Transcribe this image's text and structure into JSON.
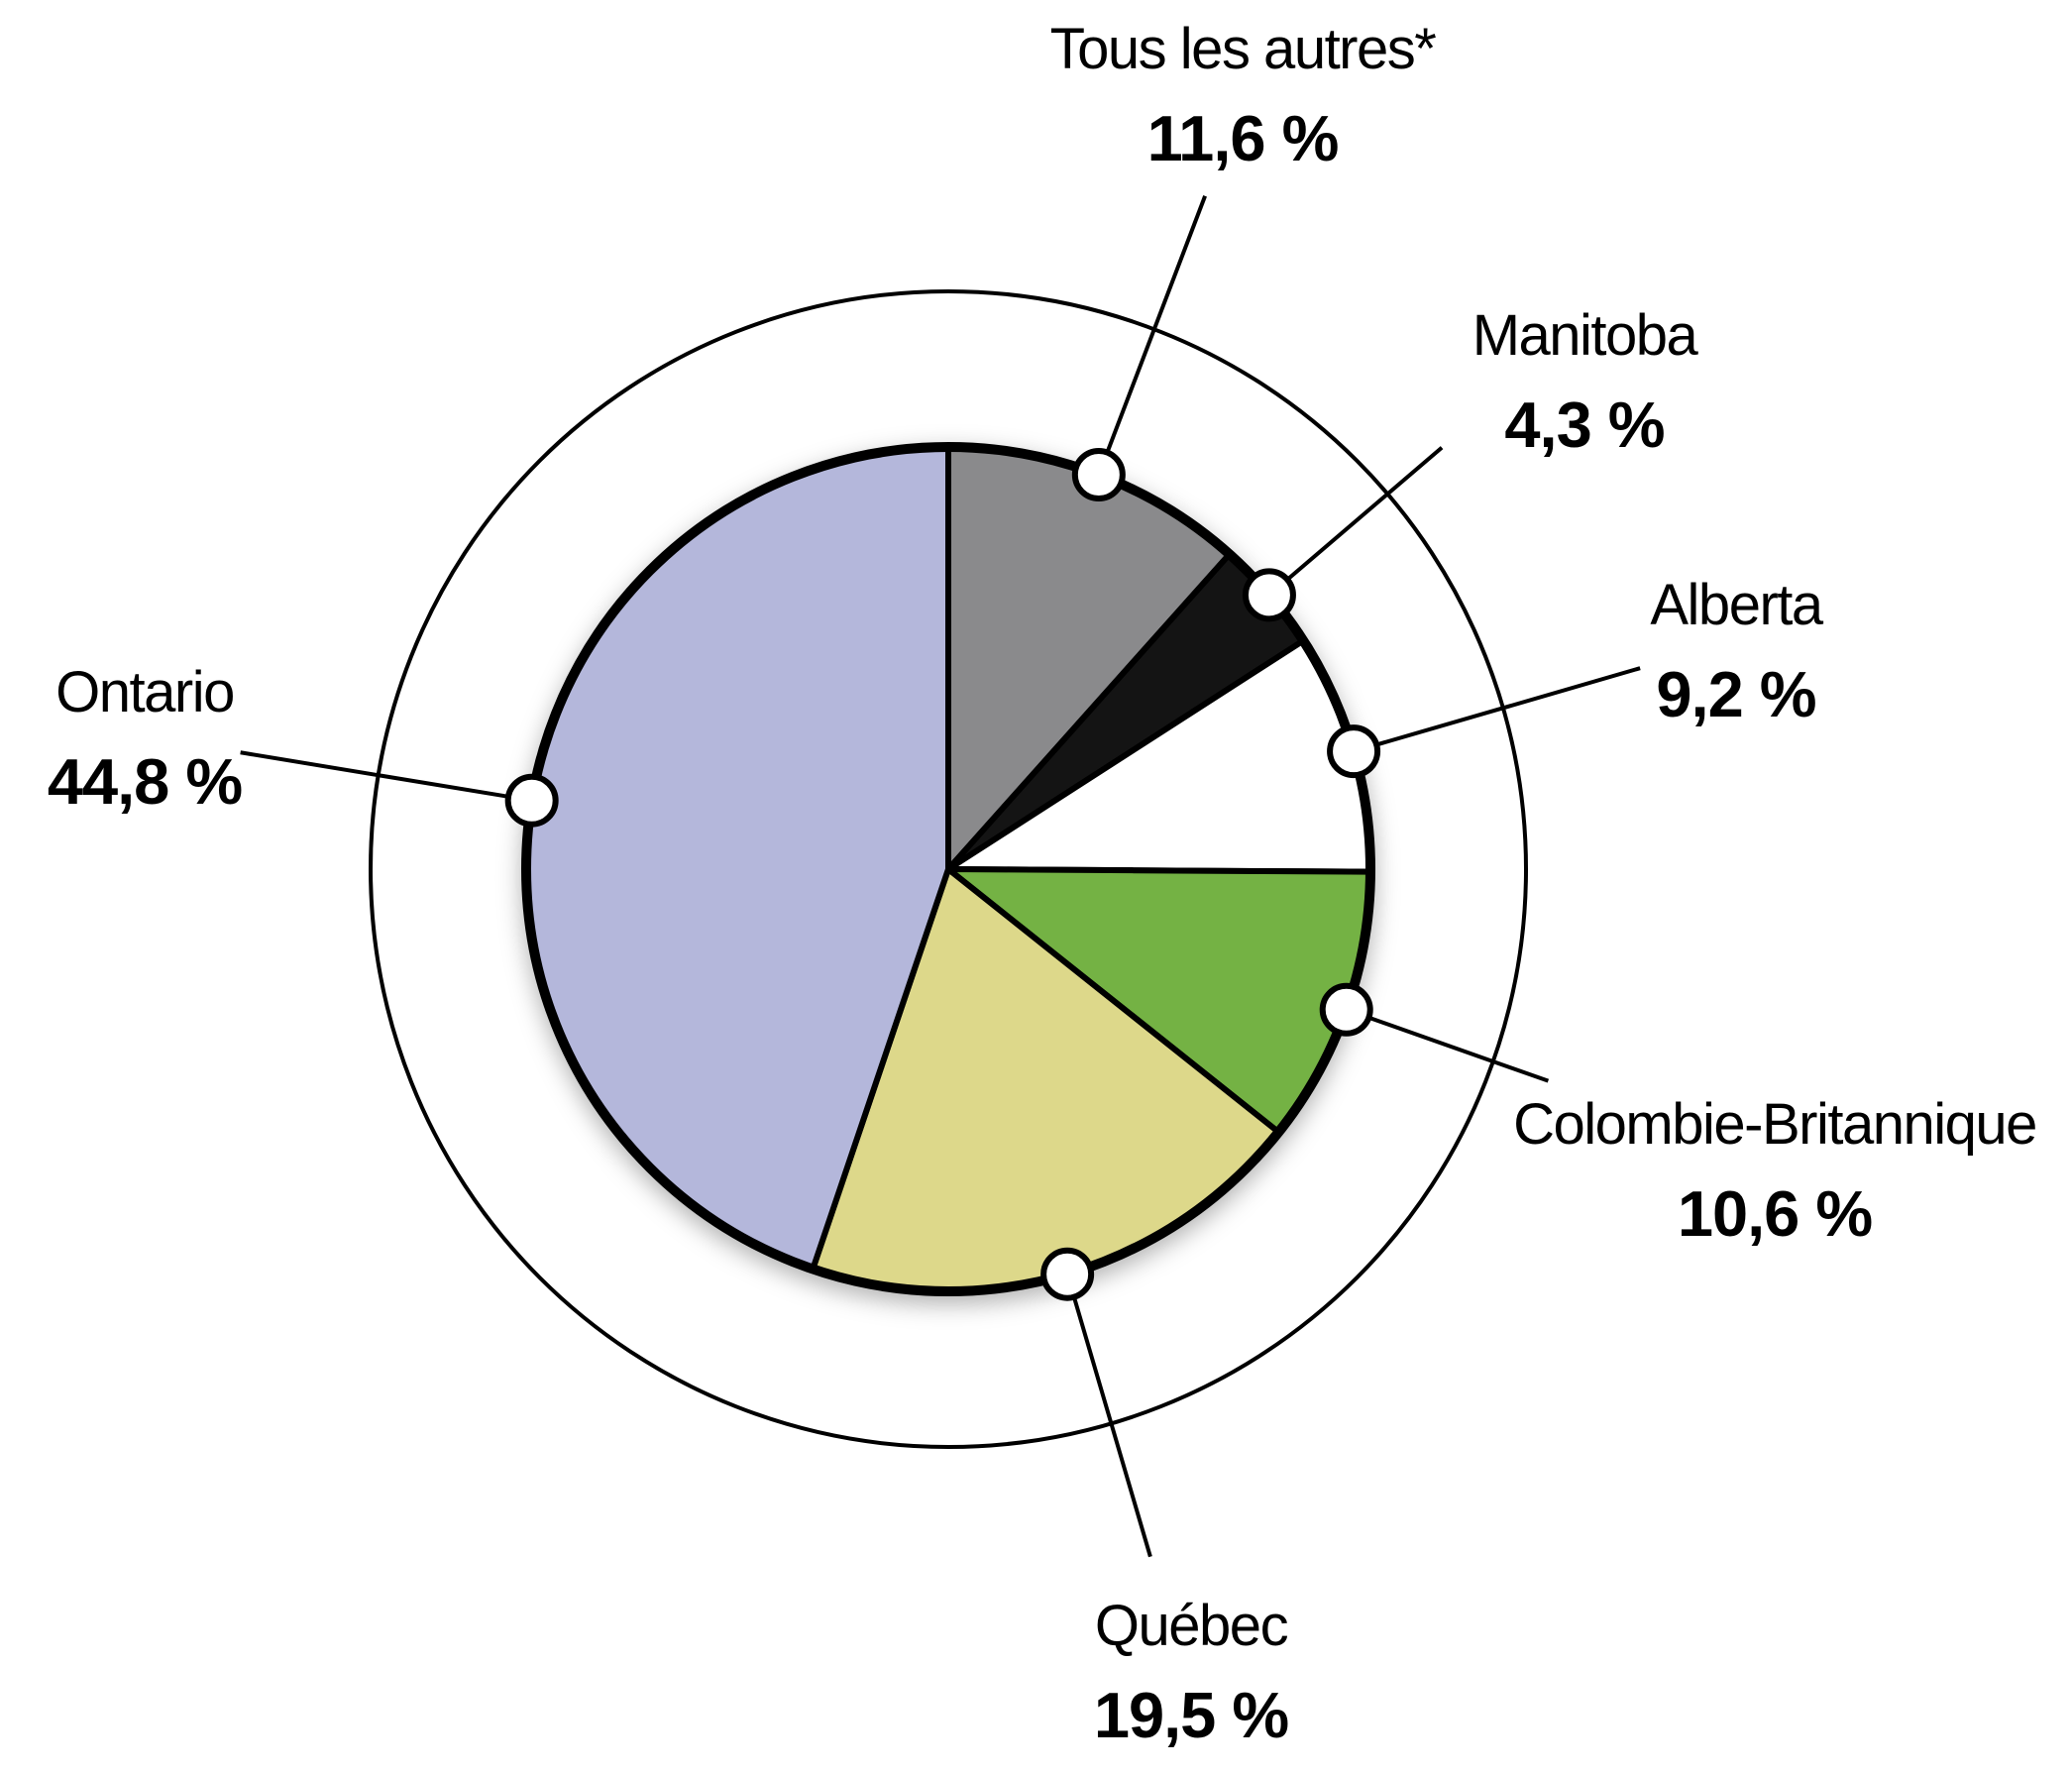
{
  "chart_data": {
    "type": "pie",
    "title": "",
    "start_angle_deg": 0,
    "direction": "clockwise",
    "legend_position": "callout-labels",
    "outer_ring": true,
    "stroke_color": "#000000",
    "background_color": "#ffffff",
    "slices": [
      {
        "label": "Tous les autres*",
        "value": 11.6,
        "value_label": "11,6 %",
        "color": "#8a8a8c"
      },
      {
        "label": "Manitoba",
        "value": 4.3,
        "value_label": "4,3 %",
        "color": "#141414"
      },
      {
        "label": "Alberta",
        "value": 9.2,
        "value_label": "9,2 %",
        "color": "#ffffff"
      },
      {
        "label": "Colombie-Britannique",
        "value": 10.6,
        "value_label": "10,6 %",
        "color": "#74b244"
      },
      {
        "label": "Québec",
        "value": 19.5,
        "value_label": "19,5 %",
        "color": "#ddd88a"
      },
      {
        "label": "Ontario",
        "value": 44.8,
        "value_label": "44,8 %",
        "color": "#b4b7db"
      }
    ]
  }
}
